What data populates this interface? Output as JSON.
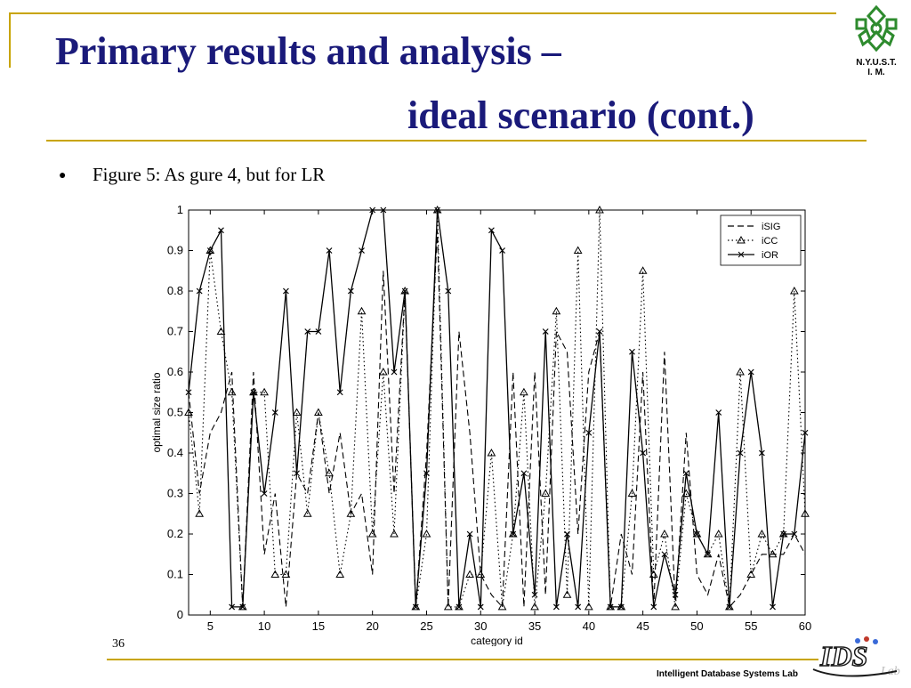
{
  "slide": {
    "title_line1": "Primary results and analysis  –",
    "title_line2": "ideal scenario (cont.)",
    "bullet": "Figure 5: As gure 4, but for LR",
    "page_number": "36",
    "footer": "Intelligent Database Systems Lab",
    "logo_text_line1": "N.Y.U.S.T.",
    "logo_text_line2": "I. M.",
    "ids_logo_text": "IDS",
    "ids_logo_subtext": "Lab",
    "colors": {
      "title": "#1a1a7a",
      "rule": "#c8a400",
      "logo_green": "#2e8b2e"
    }
  },
  "chart_data": {
    "type": "line",
    "xlabel": "category id",
    "ylabel": "optimal size ratio",
    "xlim": [
      3,
      60
    ],
    "ylim": [
      0,
      1
    ],
    "xticks": [
      5,
      10,
      15,
      20,
      25,
      30,
      35,
      40,
      45,
      50,
      55,
      60
    ],
    "yticks": [
      0,
      0.1,
      0.2,
      0.3,
      0.4,
      0.5,
      0.6,
      0.7,
      0.8,
      0.9,
      1
    ],
    "legend_position": "top-right",
    "x": [
      3,
      4,
      5,
      6,
      7,
      8,
      9,
      10,
      11,
      12,
      13,
      14,
      15,
      16,
      17,
      18,
      19,
      20,
      21,
      22,
      23,
      24,
      25,
      26,
      27,
      28,
      29,
      30,
      31,
      32,
      33,
      34,
      35,
      36,
      37,
      38,
      39,
      40,
      41,
      42,
      43,
      44,
      45,
      46,
      47,
      48,
      49,
      50,
      51,
      52,
      53,
      54,
      55,
      56,
      57,
      58,
      59,
      60
    ],
    "series": [
      {
        "name": "iSIG",
        "style": "dashed",
        "marker": "none",
        "values": [
          0.55,
          0.3,
          0.45,
          0.5,
          0.6,
          0.02,
          0.6,
          0.15,
          0.3,
          0.02,
          0.35,
          0.3,
          0.5,
          0.3,
          0.45,
          0.25,
          0.3,
          0.1,
          0.85,
          0.3,
          0.8,
          0.02,
          0.4,
          0.95,
          0.02,
          0.7,
          0.45,
          0.1,
          0.05,
          0.02,
          0.6,
          0.02,
          0.6,
          0.05,
          0.7,
          0.65,
          0.2,
          0.6,
          0.7,
          0.02,
          0.2,
          0.1,
          0.6,
          0.02,
          0.65,
          0.02,
          0.45,
          0.1,
          0.05,
          0.15,
          0.02,
          0.05,
          0.1,
          0.15,
          0.15,
          0.15,
          0.2,
          0.15
        ]
      },
      {
        "name": "iCC",
        "style": "dotted",
        "marker": "triangle",
        "values": [
          0.5,
          0.25,
          0.9,
          0.7,
          0.55,
          0.02,
          0.55,
          0.55,
          0.1,
          0.1,
          0.5,
          0.25,
          0.5,
          0.35,
          0.1,
          0.25,
          0.75,
          0.2,
          0.6,
          0.2,
          0.8,
          0.02,
          0.2,
          1.0,
          0.02,
          0.02,
          0.1,
          0.1,
          0.4,
          0.02,
          0.2,
          0.55,
          0.02,
          0.3,
          0.75,
          0.05,
          0.9,
          0.02,
          1.0,
          0.02,
          0.02,
          0.3,
          0.85,
          0.1,
          0.2,
          0.02,
          0.3,
          0.2,
          0.15,
          0.2,
          0.02,
          0.6,
          0.1,
          0.2,
          0.15,
          0.2,
          0.8,
          0.25
        ]
      },
      {
        "name": "iOR",
        "style": "solid",
        "marker": "x",
        "values": [
          0.55,
          0.8,
          0.9,
          0.95,
          0.02,
          0.02,
          0.55,
          0.3,
          0.5,
          0.8,
          0.35,
          0.7,
          0.7,
          0.9,
          0.55,
          0.8,
          0.9,
          1.0,
          1.0,
          0.6,
          0.8,
          0.02,
          0.35,
          1.0,
          0.8,
          0.02,
          0.2,
          0.02,
          0.95,
          0.9,
          0.2,
          0.35,
          0.05,
          0.7,
          0.02,
          0.2,
          0.02,
          0.45,
          0.7,
          0.02,
          0.02,
          0.65,
          0.4,
          0.02,
          0.15,
          0.05,
          0.35,
          0.2,
          0.15,
          0.5,
          0.02,
          0.4,
          0.6,
          0.4,
          0.02,
          0.2,
          0.2,
          0.45
        ]
      }
    ]
  }
}
